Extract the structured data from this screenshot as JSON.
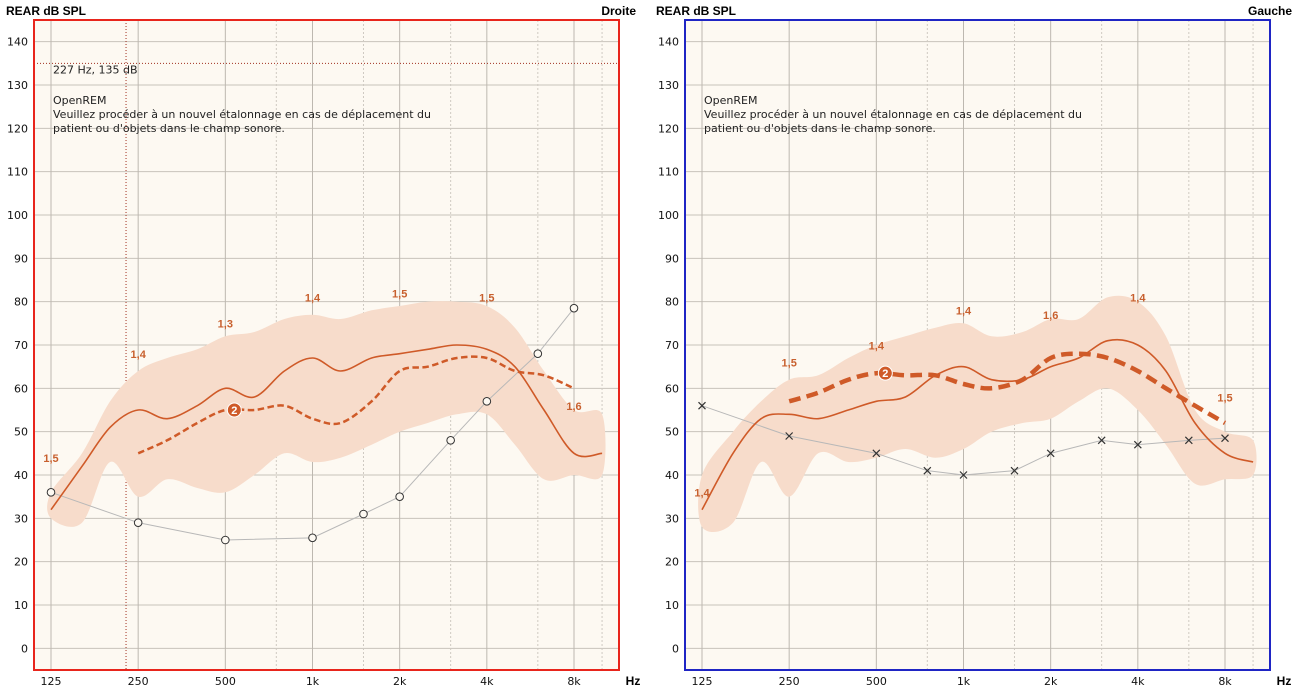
{
  "chart_data": [
    {
      "type": "line",
      "title": "REAR dB SPL",
      "side_label": "Droite",
      "frame_color": "#e8251c",
      "x_unit": "Hz",
      "y_ticks": [
        "140",
        "130",
        "120",
        "110",
        "100",
        "90",
        "80",
        "70",
        "60",
        "50",
        "40",
        "30",
        "20",
        "10",
        "0"
      ],
      "ylim": [
        -5,
        145
      ],
      "x_tick_labels": [
        {
          "label": "125",
          "freq": 125
        },
        {
          "label": "250",
          "freq": 250
        },
        {
          "label": "500",
          "freq": 500
        },
        {
          "label": "1k",
          "freq": 1000
        },
        {
          "label": "2k",
          "freq": 2000
        },
        {
          "label": "4k",
          "freq": 4000
        },
        {
          "label": "8k",
          "freq": 8000
        }
      ],
      "grid_freqs": [
        125,
        250,
        500,
        750,
        1000,
        1500,
        2000,
        3000,
        4000,
        6000,
        8000,
        10000
      ],
      "cursor_text": "227 Hz, 135 dB",
      "cursor": {
        "freq": 227,
        "db": 135
      },
      "note_lines": [
        "OpenREM",
        "Veuillez procéder à un nouvel étalonnage en cas de déplacement du",
        "patient ou d'objets dans le champ sonore."
      ],
      "band": {
        "color": "#f7dccb",
        "upper": [
          [
            125,
            36
          ],
          [
            160,
            45
          ],
          [
            200,
            57
          ],
          [
            250,
            64
          ],
          [
            315,
            67
          ],
          [
            400,
            69
          ],
          [
            500,
            72
          ],
          [
            630,
            73
          ],
          [
            800,
            76
          ],
          [
            1000,
            77
          ],
          [
            1250,
            76
          ],
          [
            1600,
            78
          ],
          [
            2000,
            79
          ],
          [
            2500,
            80
          ],
          [
            3150,
            80
          ],
          [
            4000,
            79
          ],
          [
            5000,
            74
          ],
          [
            6300,
            64
          ],
          [
            8000,
            55
          ],
          [
            10000,
            54
          ]
        ],
        "lower": [
          [
            10000,
            40
          ],
          [
            8000,
            40
          ],
          [
            6300,
            39
          ],
          [
            5000,
            47
          ],
          [
            4000,
            54
          ],
          [
            3150,
            54
          ],
          [
            2500,
            52
          ],
          [
            2000,
            50
          ],
          [
            1600,
            47
          ],
          [
            1250,
            44
          ],
          [
            1000,
            43
          ],
          [
            800,
            45
          ],
          [
            630,
            40
          ],
          [
            500,
            36
          ],
          [
            400,
            37
          ],
          [
            315,
            39
          ],
          [
            250,
            35
          ],
          [
            200,
            43
          ],
          [
            160,
            29
          ],
          [
            125,
            30
          ]
        ]
      },
      "solid_line": {
        "color": "#cf5a28",
        "points": [
          [
            125,
            32
          ],
          [
            160,
            42
          ],
          [
            200,
            51
          ],
          [
            250,
            55
          ],
          [
            315,
            53
          ],
          [
            400,
            56
          ],
          [
            500,
            60
          ],
          [
            630,
            58
          ],
          [
            800,
            64
          ],
          [
            1000,
            67
          ],
          [
            1250,
            64
          ],
          [
            1600,
            67
          ],
          [
            2000,
            68
          ],
          [
            2500,
            69
          ],
          [
            3150,
            70
          ],
          [
            4000,
            69
          ],
          [
            5000,
            65
          ],
          [
            6300,
            55
          ],
          [
            8000,
            45
          ],
          [
            10000,
            45
          ]
        ]
      },
      "dashed_line": {
        "color": "#cf5a28",
        "width": 2.5,
        "marker": "2",
        "marker_freq": 500,
        "marker_db": 55,
        "points": [
          [
            250,
            45
          ],
          [
            315,
            48
          ],
          [
            400,
            52
          ],
          [
            500,
            55
          ],
          [
            630,
            55
          ],
          [
            800,
            56
          ],
          [
            1000,
            53
          ],
          [
            1250,
            52
          ],
          [
            1600,
            57
          ],
          [
            2000,
            64
          ],
          [
            2500,
            65
          ],
          [
            3150,
            67
          ],
          [
            4000,
            67
          ],
          [
            5000,
            64
          ],
          [
            6300,
            63
          ],
          [
            8000,
            60
          ]
        ]
      },
      "threshold_line": {
        "marker": "circle",
        "points": [
          [
            125,
            36
          ],
          [
            250,
            29
          ],
          [
            500,
            25
          ],
          [
            1000,
            25.5
          ],
          [
            1500,
            31
          ],
          [
            2000,
            35
          ],
          [
            3000,
            48
          ],
          [
            4000,
            57
          ],
          [
            6000,
            68
          ],
          [
            8000,
            78.5
          ]
        ]
      },
      "data_labels": [
        {
          "text": "1,5",
          "freq": 125,
          "db": 43
        },
        {
          "text": "1,4",
          "freq": 250,
          "db": 67
        },
        {
          "text": "1,3",
          "freq": 500,
          "db": 74
        },
        {
          "text": "1,4",
          "freq": 1000,
          "db": 80
        },
        {
          "text": "1,5",
          "freq": 2000,
          "db": 81
        },
        {
          "text": "1,5",
          "freq": 4000,
          "db": 80
        },
        {
          "text": "1,6",
          "freq": 8000,
          "db": 55
        }
      ]
    },
    {
      "type": "line",
      "title": "REAR dB SPL",
      "side_label": "Gauche",
      "frame_color": "#1f25c4",
      "x_unit": "Hz",
      "y_ticks": [
        "140",
        "130",
        "120",
        "110",
        "100",
        "90",
        "80",
        "70",
        "60",
        "50",
        "40",
        "30",
        "20",
        "10",
        "0"
      ],
      "ylim": [
        -5,
        145
      ],
      "x_tick_labels": [
        {
          "label": "125",
          "freq": 125
        },
        {
          "label": "250",
          "freq": 250
        },
        {
          "label": "500",
          "freq": 500
        },
        {
          "label": "1k",
          "freq": 1000
        },
        {
          "label": "2k",
          "freq": 2000
        },
        {
          "label": "4k",
          "freq": 4000
        },
        {
          "label": "8k",
          "freq": 8000
        }
      ],
      "grid_freqs": [
        125,
        250,
        500,
        750,
        1000,
        1500,
        2000,
        3000,
        4000,
        6000,
        8000,
        10000
      ],
      "note_lines": [
        "OpenREM",
        "Veuillez procéder à un nouvel étalonnage en cas de déplacement du",
        "patient ou d'objets dans le champ sonore."
      ],
      "band": {
        "color": "#f7dccb",
        "upper": [
          [
            125,
            40
          ],
          [
            160,
            50
          ],
          [
            200,
            57
          ],
          [
            250,
            62
          ],
          [
            315,
            63
          ],
          [
            400,
            67
          ],
          [
            500,
            70
          ],
          [
            630,
            72
          ],
          [
            800,
            74
          ],
          [
            1000,
            75
          ],
          [
            1250,
            72
          ],
          [
            1600,
            73
          ],
          [
            2000,
            76
          ],
          [
            2500,
            76
          ],
          [
            3150,
            81
          ],
          [
            4000,
            80
          ],
          [
            5000,
            72
          ],
          [
            6300,
            55
          ],
          [
            8000,
            50
          ],
          [
            10000,
            48
          ]
        ],
        "lower": [
          [
            10000,
            40
          ],
          [
            8000,
            39
          ],
          [
            6300,
            38
          ],
          [
            5000,
            47
          ],
          [
            4000,
            55
          ],
          [
            3150,
            60
          ],
          [
            2500,
            57
          ],
          [
            2000,
            53
          ],
          [
            1600,
            52
          ],
          [
            1250,
            50
          ],
          [
            1000,
            46
          ],
          [
            800,
            44
          ],
          [
            630,
            46
          ],
          [
            500,
            44
          ],
          [
            400,
            43
          ],
          [
            315,
            45
          ],
          [
            250,
            35
          ],
          [
            200,
            43
          ],
          [
            160,
            29
          ],
          [
            125,
            28
          ]
        ]
      },
      "solid_line": {
        "color": "#cf5a28",
        "points": [
          [
            125,
            32
          ],
          [
            160,
            45
          ],
          [
            200,
            53
          ],
          [
            250,
            54
          ],
          [
            315,
            53
          ],
          [
            400,
            55
          ],
          [
            500,
            57
          ],
          [
            630,
            58
          ],
          [
            800,
            63
          ],
          [
            1000,
            65
          ],
          [
            1250,
            62
          ],
          [
            1600,
            62
          ],
          [
            2000,
            65
          ],
          [
            2500,
            67
          ],
          [
            3150,
            71
          ],
          [
            4000,
            70
          ],
          [
            5000,
            64
          ],
          [
            6300,
            52
          ],
          [
            8000,
            45
          ],
          [
            10000,
            43
          ]
        ]
      },
      "dashed_line": {
        "color": "#cf5a28",
        "width": 4.5,
        "marker": "2",
        "marker_freq": 500,
        "marker_db": 63.5,
        "points": [
          [
            250,
            57
          ],
          [
            315,
            59
          ],
          [
            400,
            62
          ],
          [
            500,
            63.5
          ],
          [
            630,
            63
          ],
          [
            800,
            63
          ],
          [
            1000,
            61
          ],
          [
            1250,
            60
          ],
          [
            1600,
            62
          ],
          [
            2000,
            67
          ],
          [
            2500,
            68
          ],
          [
            3150,
            67
          ],
          [
            4000,
            64
          ],
          [
            5000,
            60
          ],
          [
            6300,
            56
          ],
          [
            8000,
            52
          ]
        ]
      },
      "threshold_line": {
        "marker": "x",
        "points": [
          [
            125,
            56
          ],
          [
            250,
            49
          ],
          [
            500,
            45
          ],
          [
            750,
            41
          ],
          [
            1000,
            40
          ],
          [
            1500,
            41
          ],
          [
            2000,
            45
          ],
          [
            3000,
            48
          ],
          [
            4000,
            47
          ],
          [
            6000,
            48
          ],
          [
            8000,
            48.5
          ]
        ]
      },
      "data_labels": [
        {
          "text": "1,4",
          "freq": 125,
          "db": 35
        },
        {
          "text": "1,5",
          "freq": 250,
          "db": 65
        },
        {
          "text": "1,4",
          "freq": 500,
          "db": 69
        },
        {
          "text": "1,4",
          "freq": 1000,
          "db": 77
        },
        {
          "text": "1,6",
          "freq": 2000,
          "db": 76
        },
        {
          "text": "1,4",
          "freq": 4000,
          "db": 80
        },
        {
          "text": "1,5",
          "freq": 8000,
          "db": 57
        }
      ]
    }
  ]
}
